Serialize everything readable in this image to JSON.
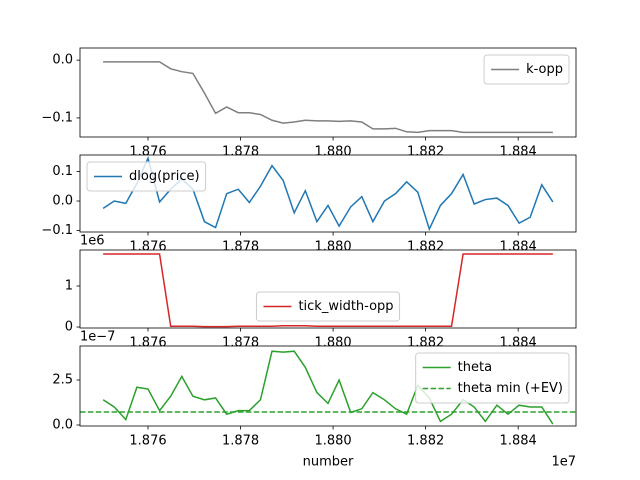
{
  "chart_data": [
    {
      "type": "line",
      "x": [
        1.87503,
        1.87527,
        1.87552,
        1.87576,
        1.876,
        1.87625,
        1.87649,
        1.87673,
        1.87697,
        1.87722,
        1.87746,
        1.8777,
        1.87795,
        1.87819,
        1.87843,
        1.87868,
        1.87892,
        1.87916,
        1.8794,
        1.87965,
        1.87989,
        1.88013,
        1.88038,
        1.88062,
        1.88086,
        1.88111,
        1.88135,
        1.88159,
        1.88183,
        1.88208,
        1.88232,
        1.88256,
        1.88281,
        1.88305,
        1.88329,
        1.88354,
        1.88378,
        1.88402,
        1.88426,
        1.88451,
        1.88475
      ],
      "xlim": [
        1.87453,
        1.88525
      ],
      "xticks": [
        1.876,
        1.878,
        {
          "value": 1.88,
          "label": "1.880"
        },
        1.882,
        1.884
      ],
      "ylim": [
        -0.133,
        0.021
      ],
      "yticks": [
        {
          "value": -0.1,
          "label": "−0.1"
        },
        {
          "value": 0,
          "label": "0.0"
        }
      ],
      "legend_loc": "upper right",
      "series": [
        {
          "name": "k-opp",
          "color": "#7f7f7f",
          "values": [
            -0.003,
            -0.003,
            -0.003,
            -0.003,
            -0.003,
            -0.003,
            -0.015,
            -0.02,
            -0.023,
            -0.057,
            -0.092,
            -0.081,
            -0.091,
            -0.091,
            -0.094,
            -0.104,
            -0.109,
            -0.107,
            -0.104,
            -0.105,
            -0.105,
            -0.106,
            -0.105,
            -0.107,
            -0.119,
            -0.119,
            -0.118,
            -0.124,
            -0.125,
            -0.122,
            -0.122,
            -0.122,
            -0.125,
            -0.125,
            -0.125,
            -0.125,
            -0.125,
            -0.125,
            -0.125,
            -0.125,
            -0.125
          ]
        }
      ]
    },
    {
      "type": "line",
      "x": [
        1.87503,
        1.87527,
        1.87552,
        1.87576,
        1.876,
        1.87625,
        1.87649,
        1.87673,
        1.87697,
        1.87722,
        1.87746,
        1.8777,
        1.87795,
        1.87819,
        1.87843,
        1.87868,
        1.87892,
        1.87916,
        1.8794,
        1.87965,
        1.87989,
        1.88013,
        1.88038,
        1.88062,
        1.88086,
        1.88111,
        1.88135,
        1.88159,
        1.88183,
        1.88208,
        1.88232,
        1.88256,
        1.88281,
        1.88305,
        1.88329,
        1.88354,
        1.88378,
        1.88402,
        1.88426,
        1.88451,
        1.88475
      ],
      "xlim": [
        1.87453,
        1.88525
      ],
      "xticks": [
        1.876,
        1.878,
        {
          "value": 1.88,
          "label": "1.880"
        },
        1.882,
        1.884
      ],
      "ylim": [
        -0.105,
        0.156
      ],
      "yticks": [
        {
          "value": -0.1,
          "label": "−0.1"
        },
        {
          "value": 0,
          "label": "0.0"
        },
        0.1
      ],
      "legend_loc": "upper left",
      "series": [
        {
          "name": "dlog(price)",
          "color": "#1f77b4",
          "values": [
            -0.025,
            0.0,
            -0.008,
            0.06,
            0.145,
            -0.003,
            0.04,
            0.075,
            0.04,
            -0.07,
            -0.09,
            0.025,
            0.04,
            -0.005,
            0.05,
            0.12,
            0.07,
            -0.04,
            0.035,
            -0.07,
            -0.015,
            -0.085,
            -0.02,
            0.015,
            -0.07,
            0.0,
            0.025,
            0.065,
            0.03,
            -0.095,
            -0.015,
            0.025,
            0.09,
            -0.01,
            0.005,
            0.01,
            -0.015,
            -0.075,
            -0.055,
            0.055,
            -0.003
          ]
        }
      ]
    },
    {
      "type": "line",
      "x": [
        1.87503,
        1.87527,
        1.87552,
        1.87576,
        1.876,
        1.87625,
        1.87649,
        1.87673,
        1.87697,
        1.87722,
        1.87746,
        1.8777,
        1.87795,
        1.87819,
        1.87843,
        1.87868,
        1.87892,
        1.87916,
        1.8794,
        1.87965,
        1.87989,
        1.88013,
        1.88038,
        1.88062,
        1.88086,
        1.88111,
        1.88135,
        1.88159,
        1.88183,
        1.88208,
        1.88232,
        1.88256,
        1.88281,
        1.88305,
        1.88329,
        1.88354,
        1.88378,
        1.88402,
        1.88426,
        1.88451,
        1.88475
      ],
      "xlim": [
        1.87453,
        1.88525
      ],
      "xticks": [
        1.876,
        1.878,
        {
          "value": 1.88,
          "label": "1.880"
        },
        1.882,
        1.884
      ],
      "ylim": [
        -0.024,
        1.878
      ],
      "yticks": [
        0,
        1
      ],
      "y_offset_label": "1e6",
      "legend_loc": "lower center",
      "series": [
        {
          "name": "tick_width-opp",
          "color": "#d62728",
          "values": [
            1.78,
            1.78,
            1.78,
            1.78,
            1.78,
            1.78,
            0.02,
            0.02,
            0.02,
            0.01,
            0.01,
            0.01,
            0.02,
            0.02,
            0.02,
            0.02,
            0.03,
            0.03,
            0.03,
            0.02,
            0.02,
            0.02,
            0.02,
            0.02,
            0.02,
            0.02,
            0.02,
            0.02,
            0.02,
            0.02,
            0.02,
            0.02,
            1.78,
            1.78,
            1.78,
            1.78,
            1.78,
            1.78,
            1.78,
            1.78,
            1.78
          ]
        }
      ]
    },
    {
      "type": "line",
      "x": [
        1.87503,
        1.87527,
        1.87552,
        1.87576,
        1.876,
        1.87625,
        1.87649,
        1.87673,
        1.87697,
        1.87722,
        1.87746,
        1.8777,
        1.87795,
        1.87819,
        1.87843,
        1.87868,
        1.87892,
        1.87916,
        1.8794,
        1.87965,
        1.87989,
        1.88013,
        1.88038,
        1.88062,
        1.88086,
        1.88111,
        1.88135,
        1.88159,
        1.88183,
        1.88208,
        1.88232,
        1.88256,
        1.88281,
        1.88305,
        1.88329,
        1.88354,
        1.88378,
        1.88402,
        1.88426,
        1.88451,
        1.88475
      ],
      "xlim": [
        1.87453,
        1.88525
      ],
      "xticks": [
        1.876,
        1.878,
        {
          "value": 1.88,
          "label": "1.880"
        },
        1.882,
        1.884
      ],
      "xlabel": "number",
      "x_offset_label": "1e7",
      "ylim": [
        -0.056,
        4.39
      ],
      "yticks": [
        {
          "value": 0,
          "label": "0.0"
        },
        2.5
      ],
      "y_offset_label": "1e−7",
      "legend_loc": "upper right",
      "series": [
        {
          "name": "theta",
          "color": "#2ca02c",
          "values": [
            1.4,
            1.0,
            0.3,
            2.1,
            2.0,
            0.8,
            1.6,
            2.7,
            1.6,
            1.4,
            1.5,
            0.6,
            0.8,
            0.8,
            1.4,
            4.1,
            4.05,
            4.1,
            3.2,
            1.8,
            1.2,
            2.5,
            0.7,
            0.9,
            1.8,
            1.4,
            0.9,
            0.6,
            2.2,
            1.5,
            0.2,
            0.6,
            1.4,
            1.0,
            0.2,
            1.1,
            0.6,
            1.1,
            1.0,
            1.0,
            0.05
          ]
        }
      ],
      "hlines": [
        {
          "name": "theta min (+EV)",
          "color": "#2ca02c",
          "linestyle": "dashed",
          "value": 0.72
        }
      ]
    }
  ]
}
